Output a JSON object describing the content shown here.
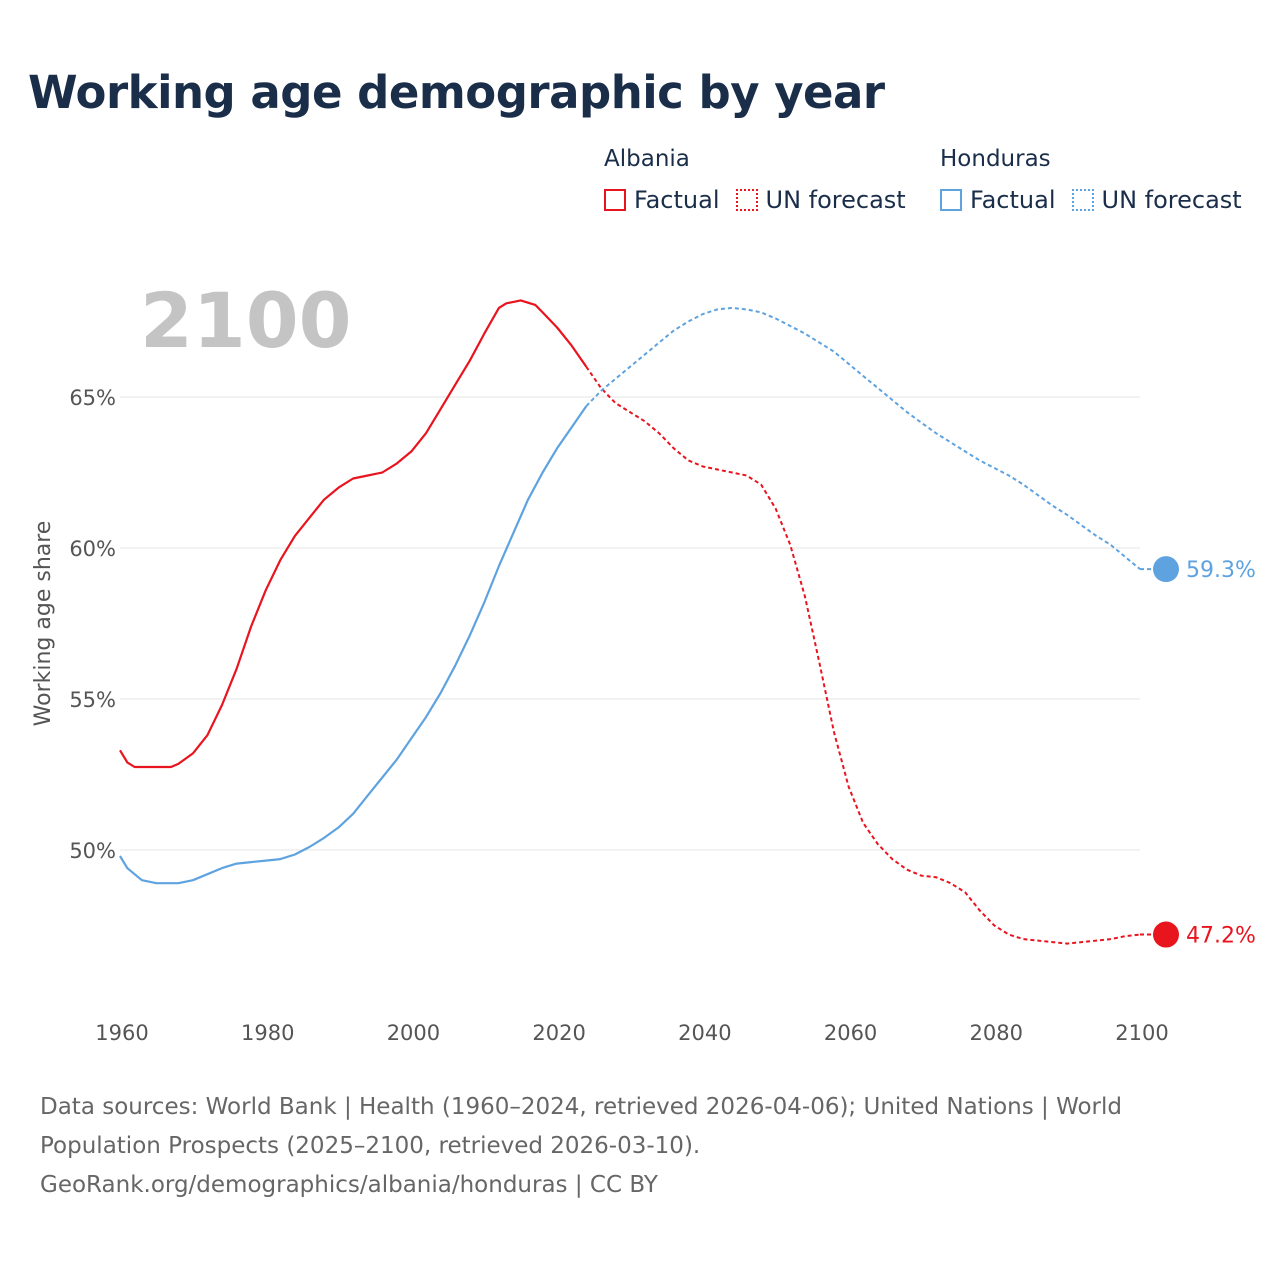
{
  "title": "Working age demographic by year",
  "year_label": "2100",
  "legend": {
    "groups": [
      {
        "name": "Albania",
        "factual": "Factual",
        "forecast": "UN forecast",
        "color": "#e8141e"
      },
      {
        "name": "Honduras",
        "factual": "Factual",
        "forecast": "UN forecast",
        "color": "#5ea3e0"
      }
    ]
  },
  "sources": {
    "line1": "Data sources: World Bank | Health (1960–2024, retrieved 2026-04-06); United Nations | World",
    "line2": "Population Prospects (2025–2100, retrieved 2026-03-10).",
    "line3": "GeoRank.org/demographics/albania/honduras | CC BY"
  },
  "chart_data": {
    "type": "line",
    "title": "Working age demographic by year",
    "xlabel": "",
    "ylabel": "Working age share",
    "xlim": [
      1960,
      2100
    ],
    "ylim": [
      45,
      70
    ],
    "x_ticks": [
      1960,
      1980,
      2000,
      2020,
      2040,
      2060,
      2080,
      2100
    ],
    "x_tick_labels": [
      "1960",
      "1980",
      "2000",
      "2020",
      "2040",
      "2060",
      "2080",
      "2100"
    ],
    "y_ticks": [
      50,
      55,
      60,
      65
    ],
    "y_tick_labels": [
      "50%",
      "55%",
      "60%",
      "65%"
    ],
    "factual_end_year": 2024,
    "series": [
      {
        "name": "Albania",
        "color": "#e8141e",
        "end_label": "47.2%",
        "points": [
          [
            1960,
            53.3
          ],
          [
            1961,
            52.9
          ],
          [
            1962,
            52.75
          ],
          [
            1965,
            52.75
          ],
          [
            1967,
            52.75
          ],
          [
            1968,
            52.85
          ],
          [
            1970,
            53.2
          ],
          [
            1972,
            53.8
          ],
          [
            1974,
            54.8
          ],
          [
            1976,
            56.0
          ],
          [
            1978,
            57.4
          ],
          [
            1980,
            58.6
          ],
          [
            1982,
            59.6
          ],
          [
            1984,
            60.4
          ],
          [
            1986,
            61.0
          ],
          [
            1988,
            61.6
          ],
          [
            1990,
            62.0
          ],
          [
            1992,
            62.3
          ],
          [
            1994,
            62.4
          ],
          [
            1996,
            62.5
          ],
          [
            1998,
            62.8
          ],
          [
            2000,
            63.2
          ],
          [
            2002,
            63.8
          ],
          [
            2004,
            64.6
          ],
          [
            2006,
            65.4
          ],
          [
            2008,
            66.2
          ],
          [
            2010,
            67.1
          ],
          [
            2012,
            67.95
          ],
          [
            2013,
            68.1
          ],
          [
            2014,
            68.15
          ],
          [
            2015,
            68.2
          ],
          [
            2017,
            68.05
          ],
          [
            2018,
            67.8
          ],
          [
            2020,
            67.3
          ],
          [
            2022,
            66.7
          ],
          [
            2024,
            66.0
          ],
          [
            2026,
            65.3
          ],
          [
            2028,
            64.8
          ],
          [
            2030,
            64.5
          ],
          [
            2032,
            64.2
          ],
          [
            2034,
            63.8
          ],
          [
            2036,
            63.3
          ],
          [
            2038,
            62.9
          ],
          [
            2040,
            62.7
          ],
          [
            2042,
            62.6
          ],
          [
            2044,
            62.5
          ],
          [
            2046,
            62.4
          ],
          [
            2048,
            62.1
          ],
          [
            2050,
            61.3
          ],
          [
            2052,
            60.1
          ],
          [
            2054,
            58.4
          ],
          [
            2056,
            56.2
          ],
          [
            2058,
            53.9
          ],
          [
            2060,
            52.1
          ],
          [
            2062,
            50.9
          ],
          [
            2064,
            50.2
          ],
          [
            2066,
            49.7
          ],
          [
            2068,
            49.35
          ],
          [
            2070,
            49.15
          ],
          [
            2072,
            49.1
          ],
          [
            2074,
            48.9
          ],
          [
            2076,
            48.6
          ],
          [
            2078,
            48.0
          ],
          [
            2080,
            47.5
          ],
          [
            2082,
            47.2
          ],
          [
            2084,
            47.05
          ],
          [
            2086,
            47.0
          ],
          [
            2088,
            46.95
          ],
          [
            2090,
            46.9
          ],
          [
            2092,
            46.95
          ],
          [
            2094,
            47.0
          ],
          [
            2096,
            47.05
          ],
          [
            2098,
            47.15
          ],
          [
            2100,
            47.2
          ]
        ]
      },
      {
        "name": "Honduras",
        "color": "#5ea3e0",
        "end_label": "59.3%",
        "points": [
          [
            1960,
            49.8
          ],
          [
            1961,
            49.4
          ],
          [
            1962,
            49.2
          ],
          [
            1963,
            49.0
          ],
          [
            1965,
            48.9
          ],
          [
            1968,
            48.9
          ],
          [
            1970,
            49.0
          ],
          [
            1972,
            49.2
          ],
          [
            1974,
            49.4
          ],
          [
            1976,
            49.55
          ],
          [
            1978,
            49.6
          ],
          [
            1980,
            49.65
          ],
          [
            1982,
            49.7
          ],
          [
            1984,
            49.85
          ],
          [
            1986,
            50.1
          ],
          [
            1988,
            50.4
          ],
          [
            1990,
            50.75
          ],
          [
            1992,
            51.2
          ],
          [
            1994,
            51.8
          ],
          [
            1996,
            52.4
          ],
          [
            1998,
            53.0
          ],
          [
            2000,
            53.7
          ],
          [
            2002,
            54.4
          ],
          [
            2004,
            55.2
          ],
          [
            2006,
            56.1
          ],
          [
            2008,
            57.1
          ],
          [
            2010,
            58.2
          ],
          [
            2012,
            59.4
          ],
          [
            2014,
            60.5
          ],
          [
            2016,
            61.6
          ],
          [
            2018,
            62.5
          ],
          [
            2020,
            63.3
          ],
          [
            2022,
            64.0
          ],
          [
            2024,
            64.7
          ],
          [
            2026,
            65.2
          ],
          [
            2028,
            65.6
          ],
          [
            2030,
            66.0
          ],
          [
            2032,
            66.4
          ],
          [
            2034,
            66.8
          ],
          [
            2036,
            67.2
          ],
          [
            2038,
            67.5
          ],
          [
            2040,
            67.75
          ],
          [
            2042,
            67.9
          ],
          [
            2044,
            67.95
          ],
          [
            2046,
            67.9
          ],
          [
            2048,
            67.8
          ],
          [
            2050,
            67.6
          ],
          [
            2052,
            67.35
          ],
          [
            2054,
            67.1
          ],
          [
            2056,
            66.8
          ],
          [
            2058,
            66.5
          ],
          [
            2060,
            66.1
          ],
          [
            2062,
            65.7
          ],
          [
            2064,
            65.3
          ],
          [
            2066,
            64.9
          ],
          [
            2068,
            64.5
          ],
          [
            2070,
            64.15
          ],
          [
            2072,
            63.8
          ],
          [
            2074,
            63.5
          ],
          [
            2076,
            63.2
          ],
          [
            2078,
            62.9
          ],
          [
            2080,
            62.65
          ],
          [
            2082,
            62.4
          ],
          [
            2084,
            62.1
          ],
          [
            2086,
            61.75
          ],
          [
            2088,
            61.4
          ],
          [
            2090,
            61.1
          ],
          [
            2092,
            60.75
          ],
          [
            2094,
            60.4
          ],
          [
            2096,
            60.1
          ],
          [
            2098,
            59.7
          ],
          [
            2100,
            59.3
          ]
        ]
      }
    ]
  }
}
